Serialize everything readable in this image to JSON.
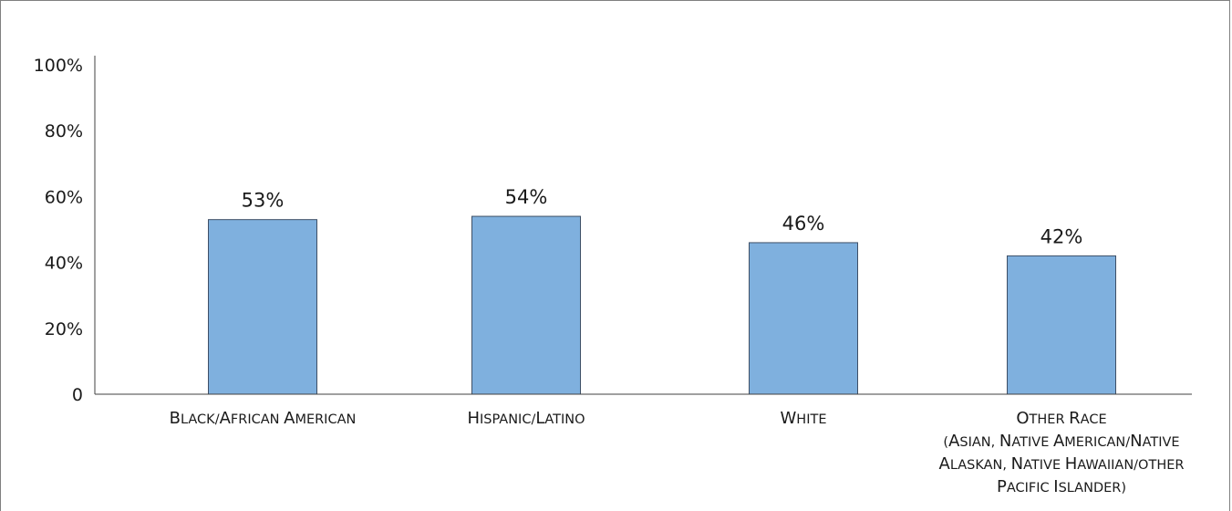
{
  "chart_data": {
    "type": "bar",
    "title": "",
    "xlabel": "",
    "ylabel": "",
    "ylim": [
      0,
      100
    ],
    "yticks": [
      0,
      20,
      40,
      60,
      80,
      100
    ],
    "ytick_labels": [
      "0",
      "20%",
      "40%",
      "60%",
      "80%",
      "100%"
    ],
    "categories": [
      [
        "Black/African American"
      ],
      [
        "Hispanic/Latino"
      ],
      [
        "White"
      ],
      [
        "Other Race",
        "(Asian, Native American/Native",
        "Alaskan, Native Hawaiian/other",
        "Pacific Islander)"
      ]
    ],
    "values": [
      53,
      54,
      46,
      42
    ],
    "value_labels": [
      "53%",
      "54%",
      "46%",
      "42%"
    ],
    "grid": false,
    "legend": "none",
    "colors": {
      "bar_fill": "#7fb0de",
      "bar_stroke": "#3d4f66",
      "axis": "#404040"
    }
  }
}
